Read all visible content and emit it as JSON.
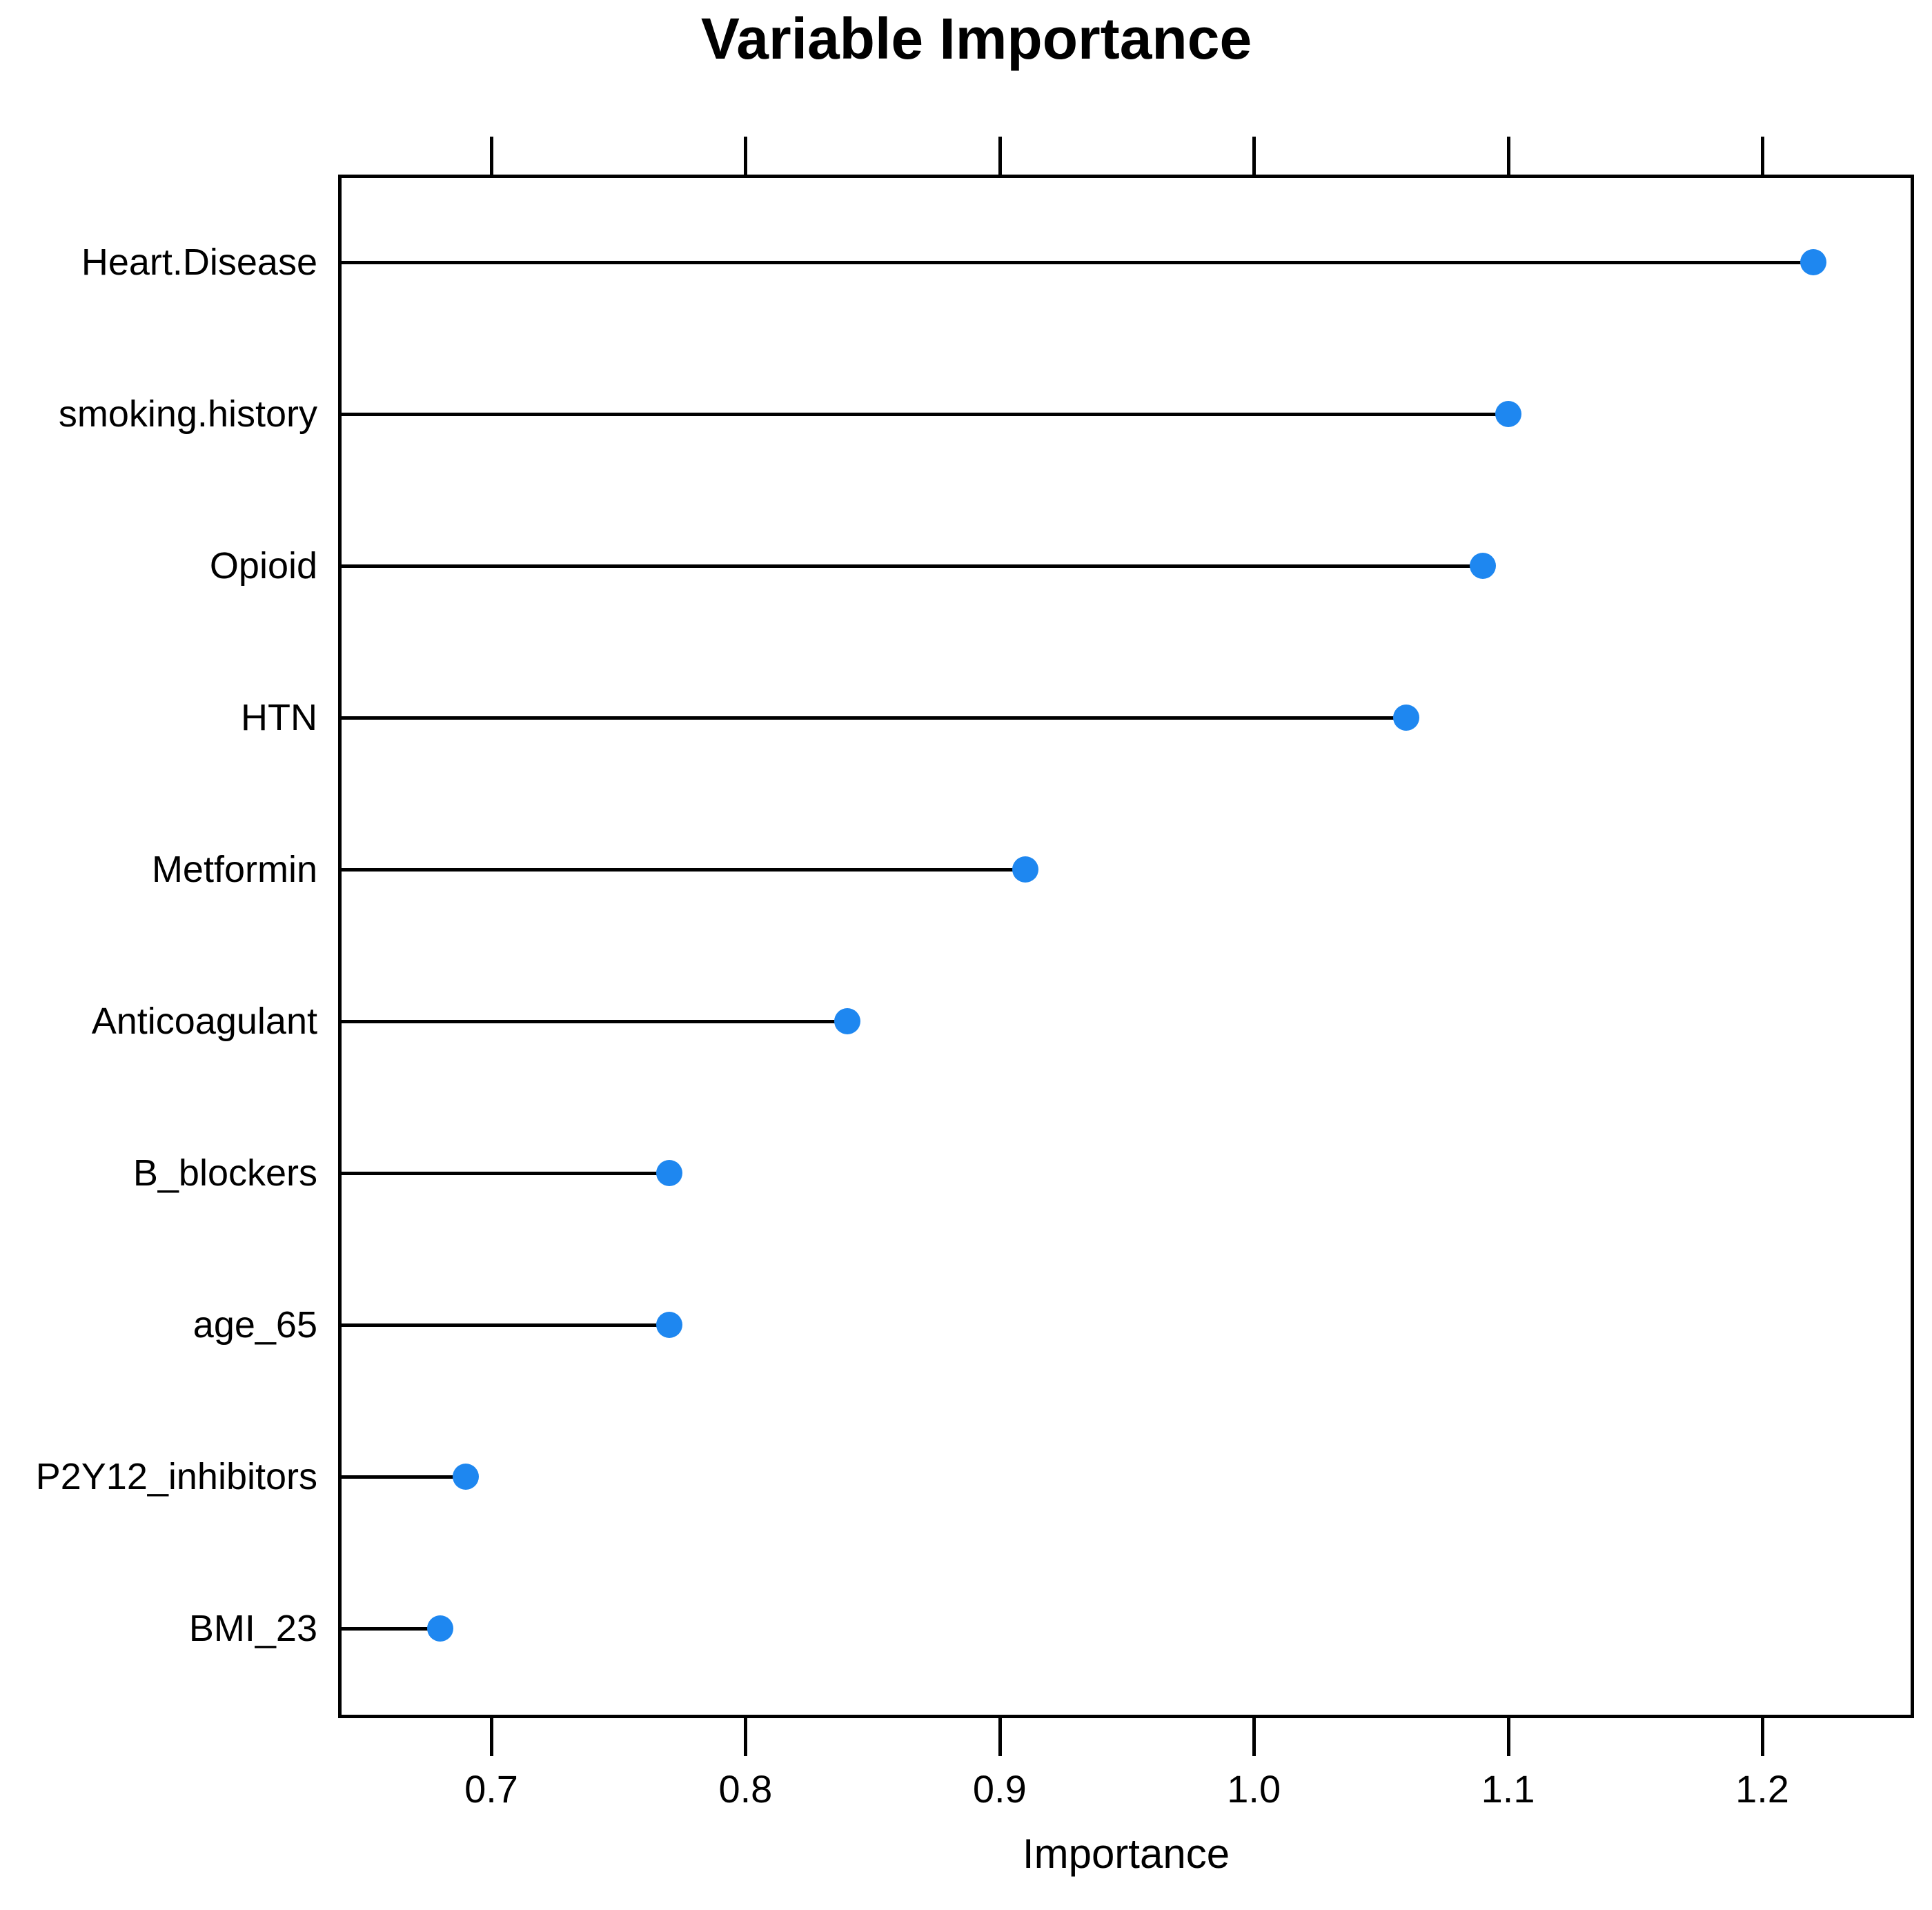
{
  "title": "Variable Importance",
  "xlabel": "Importance",
  "chart_data": {
    "type": "scatter",
    "subtype": "dotchart-lollipop",
    "title": "Variable Importance",
    "xlabel": "Importance",
    "ylabel": "",
    "categories": [
      "Heart.Disease",
      "smoking.history",
      "Opioid",
      "HTN",
      "Metformin",
      "Anticoagulant",
      "B_blockers",
      "age_65",
      "P2Y12_inhibitors",
      "BMI_23"
    ],
    "values": [
      1.22,
      1.1,
      1.09,
      1.06,
      0.91,
      0.84,
      0.77,
      0.77,
      0.69,
      0.68
    ],
    "x_ticks": [
      0.7,
      0.8,
      0.9,
      1.0,
      1.1,
      1.2
    ],
    "x_tick_labels": [
      "0.7",
      "0.8",
      "0.9",
      "1.0",
      "1.1",
      "1.2"
    ],
    "xlim": [
      0.64,
      1.26
    ],
    "grid": "off",
    "legend": "none",
    "point_color": "#1E87F0",
    "line_color": "#000000",
    "frame_color": "#000000",
    "text_color": "#000000"
  }
}
